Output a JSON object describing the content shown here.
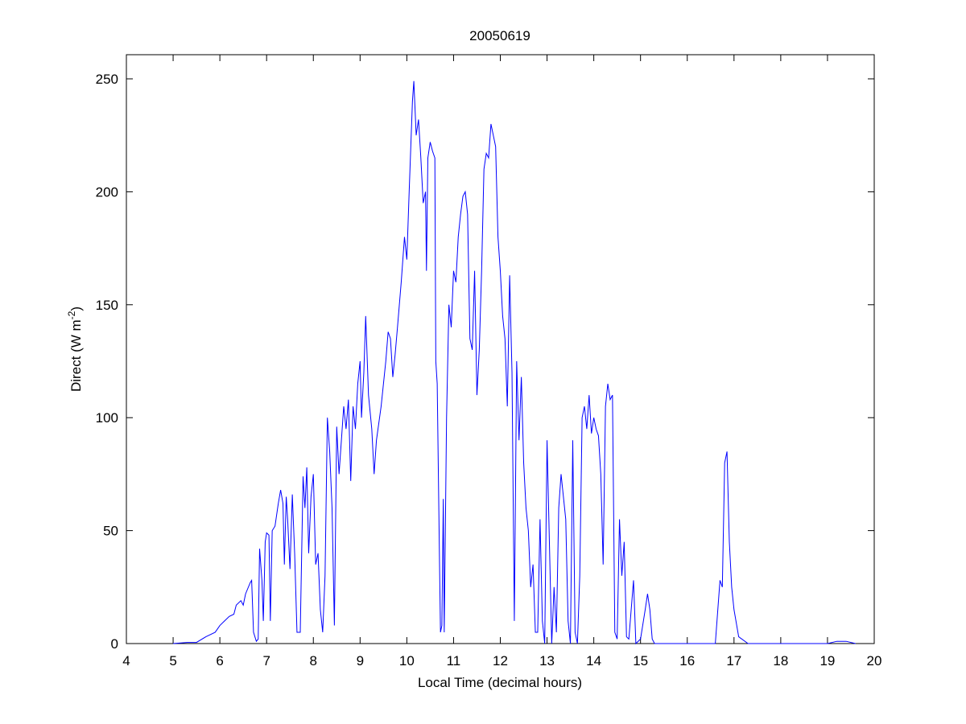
{
  "chart_data": {
    "type": "line",
    "title": "20050619",
    "xlabel": "Local Time (decimal hours)",
    "ylabel": {
      "text": "Direct (W m",
      "sup": "-2",
      "end": ")"
    },
    "color": "#0000ff",
    "xlim": [
      4,
      20
    ],
    "xticks": [
      4,
      5,
      6,
      7,
      8,
      9,
      10,
      11,
      12,
      13,
      14,
      15,
      16,
      17,
      18,
      19,
      20
    ],
    "ylim": [
      0,
      250
    ],
    "yticks": [
      0,
      50,
      100,
      150,
      200,
      250
    ],
    "x": [
      5.0,
      5.3,
      5.5,
      5.7,
      5.9,
      6.0,
      6.1,
      6.2,
      6.3,
      6.35,
      6.45,
      6.5,
      6.55,
      6.65,
      6.68,
      6.72,
      6.78,
      6.82,
      6.85,
      6.9,
      6.93,
      6.97,
      7.0,
      7.05,
      7.08,
      7.12,
      7.18,
      7.25,
      7.3,
      7.35,
      7.38,
      7.42,
      7.45,
      7.5,
      7.55,
      7.6,
      7.65,
      7.72,
      7.78,
      7.82,
      7.86,
      7.9,
      7.95,
      8.0,
      8.05,
      8.1,
      8.15,
      8.2,
      8.25,
      8.3,
      8.35,
      8.4,
      8.45,
      8.5,
      8.55,
      8.6,
      8.65,
      8.7,
      8.75,
      8.8,
      8.85,
      8.9,
      8.95,
      9.0,
      9.03,
      9.08,
      9.12,
      9.18,
      9.25,
      9.3,
      9.35,
      9.45,
      9.55,
      9.6,
      9.65,
      9.7,
      9.75,
      9.8,
      9.88,
      9.95,
      10.0,
      10.05,
      10.12,
      10.15,
      10.2,
      10.25,
      10.3,
      10.35,
      10.4,
      10.42,
      10.45,
      10.5,
      10.55,
      10.6,
      10.62,
      10.65,
      10.7,
      10.72,
      10.75,
      10.78,
      10.8,
      10.85,
      10.9,
      10.95,
      11.0,
      11.05,
      11.1,
      11.15,
      11.2,
      11.25,
      11.3,
      11.35,
      11.4,
      11.45,
      11.5,
      11.55,
      11.6,
      11.65,
      11.7,
      11.75,
      11.8,
      11.85,
      11.9,
      11.95,
      12.0,
      12.05,
      12.1,
      12.15,
      12.2,
      12.25,
      12.3,
      12.35,
      12.4,
      12.45,
      12.5,
      12.55,
      12.6,
      12.65,
      12.7,
      12.75,
      12.8,
      12.85,
      12.9,
      12.95,
      13.0,
      13.05,
      13.1,
      13.15,
      13.2,
      13.25,
      13.3,
      13.35,
      13.4,
      13.45,
      13.5,
      13.55,
      13.6,
      13.65,
      13.7,
      13.75,
      13.8,
      13.85,
      13.9,
      13.95,
      14.0,
      14.05,
      14.1,
      14.15,
      14.2,
      14.25,
      14.3,
      14.35,
      14.4,
      14.45,
      14.5,
      14.55,
      14.6,
      14.65,
      14.7,
      14.75,
      14.8,
      14.85,
      14.9,
      15.0,
      15.1,
      15.15,
      15.2,
      15.25,
      15.3,
      16.0,
      16.6,
      16.7,
      16.75,
      16.8,
      16.85,
      16.9,
      16.95,
      17.0,
      17.1,
      17.3,
      18.0,
      19.0,
      19.2,
      19.4,
      19.6
    ],
    "values": [
      0,
      0.5,
      0.5,
      3,
      5,
      8,
      10,
      12,
      13,
      17,
      19,
      17,
      22,
      27,
      28,
      5,
      1,
      2,
      42,
      28,
      10,
      45,
      49,
      48,
      10,
      50,
      52,
      62,
      68,
      62,
      35,
      65,
      55,
      33,
      66,
      40,
      5,
      5,
      74,
      60,
      78,
      40,
      65,
      75,
      35,
      40,
      15,
      5,
      30,
      100,
      85,
      60,
      8,
      96,
      75,
      90,
      105,
      95,
      108,
      72,
      105,
      95,
      115,
      125,
      100,
      120,
      145,
      110,
      95,
      75,
      90,
      105,
      125,
      138,
      135,
      118,
      128,
      140,
      160,
      180,
      170,
      200,
      240,
      249,
      225,
      232,
      215,
      195,
      200,
      165,
      215,
      222,
      218,
      215,
      125,
      115,
      35,
      5,
      8,
      64,
      5,
      100,
      150,
      140,
      165,
      160,
      180,
      190,
      198,
      200,
      190,
      135,
      130,
      165,
      110,
      130,
      165,
      210,
      217,
      215,
      230,
      225,
      220,
      180,
      165,
      145,
      135,
      105,
      163,
      120,
      10,
      125,
      90,
      118,
      80,
      60,
      50,
      25,
      35,
      5,
      5,
      55,
      10,
      0,
      90,
      45,
      0,
      25,
      5,
      60,
      75,
      65,
      55,
      10,
      0,
      90,
      5,
      0,
      30,
      100,
      105,
      95,
      110,
      93,
      100,
      95,
      92,
      75,
      35,
      105,
      115,
      108,
      110,
      5,
      2,
      55,
      30,
      45,
      3,
      2,
      15,
      28,
      0,
      2,
      15,
      22,
      15,
      2,
      0,
      0,
      0,
      28,
      25,
      80,
      85,
      45,
      25,
      15,
      3,
      0,
      0,
      0,
      1,
      1,
      0
    ]
  }
}
